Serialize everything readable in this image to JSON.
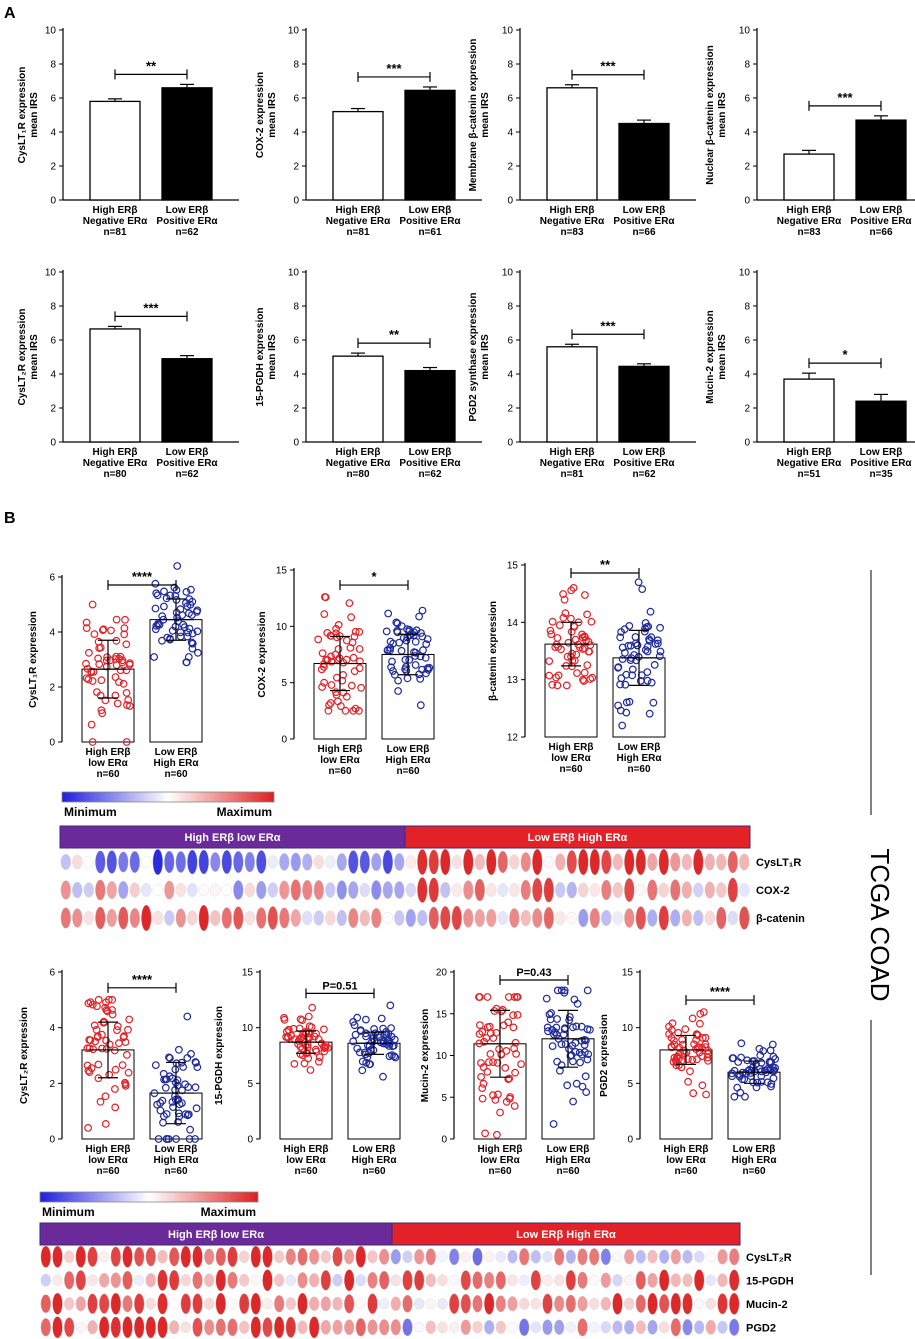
{
  "panel_labels": {
    "a": "A",
    "b": "B"
  },
  "side_label": "TCGA COAD",
  "legend": {
    "min": "Minimum",
    "max": "Maximum"
  },
  "heatmap_top": {
    "group_left": "High ERβ low ERα",
    "group_right": "Low ERβ High ERα",
    "rows": [
      "CysLT₁R",
      "COX-2",
      "β-catenin"
    ]
  },
  "heatmap_bottom": {
    "group_left": "High ERβ low ERα",
    "group_right": "Low ERβ High ERα",
    "rows": [
      "CysLT₂R",
      "15-PGDH",
      "Mucin-2",
      "PGD2"
    ]
  },
  "chart_data": [
    {
      "type": "bar",
      "panel": "A",
      "title": "",
      "ylabel": [
        "CysLT₁R expression",
        "mean IRS"
      ],
      "ylim": [
        0,
        10
      ],
      "yticks": [
        0,
        2,
        4,
        6,
        8,
        10
      ],
      "categories": [
        [
          "High ERβ",
          "Negative ERα",
          "n=81"
        ],
        [
          "Low ERβ",
          "Positive ERα",
          "n=62"
        ]
      ],
      "values": [
        5.8,
        6.6
      ],
      "errors": [
        0.15,
        0.2
      ],
      "significance": "**"
    },
    {
      "type": "bar",
      "panel": "A",
      "title": "",
      "ylabel": [
        "COX-2 expression",
        "mean IRS"
      ],
      "ylim": [
        0,
        10
      ],
      "yticks": [
        0,
        2,
        4,
        6,
        8,
        10
      ],
      "categories": [
        [
          "High ERβ",
          "Negative ERα",
          "n=81"
        ],
        [
          "Low ERβ",
          "Positive ERα",
          "n=61"
        ]
      ],
      "values": [
        5.2,
        6.45
      ],
      "errors": [
        0.18,
        0.2
      ],
      "significance": "***"
    },
    {
      "type": "bar",
      "panel": "A",
      "title": "",
      "ylabel": [
        "Membrane β-catenin expression",
        "mean IRS"
      ],
      "ylim": [
        0,
        10
      ],
      "yticks": [
        0,
        2,
        4,
        6,
        8,
        10
      ],
      "categories": [
        [
          "High ERβ",
          "Negative ERα",
          "n=83"
        ],
        [
          "Low ERβ",
          "Positive ERα",
          "n=66"
        ]
      ],
      "values": [
        6.6,
        4.5
      ],
      "errors": [
        0.18,
        0.2
      ],
      "significance": "***"
    },
    {
      "type": "bar",
      "panel": "A",
      "title": "",
      "ylabel": [
        "Nuclear β-catenin expression",
        "mean IRS"
      ],
      "ylim": [
        0,
        10
      ],
      "yticks": [
        0,
        2,
        4,
        6,
        8,
        10
      ],
      "categories": [
        [
          "High ERβ",
          "Negative ERα",
          "n=83"
        ],
        [
          "Low ERβ",
          "Positive ERα",
          "n=66"
        ]
      ],
      "values": [
        2.7,
        4.7
      ],
      "errors": [
        0.22,
        0.25
      ],
      "significance": "***"
    },
    {
      "type": "bar",
      "panel": "A",
      "title": "",
      "ylabel": [
        "CysLT₂R expression",
        "mean IRS"
      ],
      "ylim": [
        0,
        10
      ],
      "yticks": [
        0,
        2,
        4,
        6,
        8,
        10
      ],
      "categories": [
        [
          "High ERβ",
          "Negative ERα",
          "n=80"
        ],
        [
          "Low ERβ",
          "Positive ERα",
          "n=62"
        ]
      ],
      "values": [
        6.65,
        4.9
      ],
      "errors": [
        0.15,
        0.18
      ],
      "significance": "***"
    },
    {
      "type": "bar",
      "panel": "A",
      "title": "",
      "ylabel": [
        "15-PGDH expression",
        "mean IRS"
      ],
      "ylim": [
        0,
        10
      ],
      "yticks": [
        0,
        2,
        4,
        6,
        8,
        10
      ],
      "categories": [
        [
          "High ERβ",
          "Negative ERα",
          "n=80"
        ],
        [
          "Low ERβ",
          "Positive ERα",
          "n=62"
        ]
      ],
      "values": [
        5.05,
        4.2
      ],
      "errors": [
        0.18,
        0.18
      ],
      "significance": "**"
    },
    {
      "type": "bar",
      "panel": "A",
      "title": "",
      "ylabel": [
        "PGD2 synthase expression",
        "mean IRS"
      ],
      "ylim": [
        0,
        10
      ],
      "yticks": [
        0,
        2,
        4,
        6,
        8,
        10
      ],
      "categories": [
        [
          "High ERβ",
          "Negative ERα",
          "n=81"
        ],
        [
          "Low ERβ",
          "Positive ERα",
          "n=62"
        ]
      ],
      "values": [
        5.6,
        4.45
      ],
      "errors": [
        0.15,
        0.15
      ],
      "significance": "***"
    },
    {
      "type": "bar",
      "panel": "A",
      "title": "",
      "ylabel": [
        "Mucin-2 expression",
        "mean IRS"
      ],
      "ylim": [
        0,
        10
      ],
      "yticks": [
        0,
        2,
        4,
        6,
        8,
        10
      ],
      "categories": [
        [
          "High ERβ",
          "Negative ERα",
          "n=51"
        ],
        [
          "Low ERβ",
          "Positive ERα",
          "n=35"
        ]
      ],
      "values": [
        3.7,
        2.4
      ],
      "errors": [
        0.35,
        0.4
      ],
      "significance": "*"
    },
    {
      "type": "scatter",
      "panel": "B",
      "title": "",
      "ylabel": [
        "CysLT₁R expression"
      ],
      "ylim": [
        0,
        6
      ],
      "yticks": [
        0,
        2,
        4,
        6
      ],
      "categories": [
        [
          "High ERβ",
          "low ERα",
          "n=60"
        ],
        [
          "Low ERβ",
          "High ERα",
          "n=60"
        ]
      ],
      "values": [
        2.65,
        4.45
      ],
      "sd": [
        1.05,
        0.75
      ],
      "range": [
        [
          0.0,
          5.0
        ],
        [
          2.9,
          6.4
        ]
      ],
      "n": [
        60,
        60
      ],
      "significance": "****"
    },
    {
      "type": "scatter",
      "panel": "B",
      "title": "",
      "ylabel": [
        "COX-2 expression"
      ],
      "ylim": [
        0,
        15
      ],
      "yticks": [
        0,
        5,
        10,
        15
      ],
      "categories": [
        [
          "High ERβ",
          "low ERα",
          "n=60"
        ],
        [
          "Low ERβ",
          "High ERα",
          "n=60"
        ]
      ],
      "values": [
        6.7,
        7.5
      ],
      "sd": [
        2.4,
        1.8
      ],
      "range": [
        [
          2.5,
          12.6
        ],
        [
          3.0,
          11.4
        ]
      ],
      "n": [
        60,
        60
      ],
      "significance": "*"
    },
    {
      "type": "scatter",
      "panel": "B",
      "title": "",
      "ylabel": [
        "β-catenin expression"
      ],
      "ylim": [
        12,
        15
      ],
      "yticks": [
        12,
        13,
        14,
        15
      ],
      "categories": [
        [
          "High ERβ",
          "low ERα",
          "n=60"
        ],
        [
          "Low ERβ",
          "High ERα",
          "n=60"
        ]
      ],
      "values": [
        13.62,
        13.38
      ],
      "sd": [
        0.38,
        0.48
      ],
      "range": [
        [
          12.9,
          14.6
        ],
        [
          12.2,
          14.7
        ]
      ],
      "n": [
        60,
        60
      ],
      "significance": "**"
    },
    {
      "type": "scatter",
      "panel": "B",
      "title": "",
      "ylabel": [
        "CysLT₂R expression"
      ],
      "ylim": [
        0,
        6
      ],
      "yticks": [
        0,
        2,
        4,
        6
      ],
      "categories": [
        [
          "High ERβ",
          "low ERα",
          "n=60"
        ],
        [
          "Low ERβ",
          "High ERα",
          "n=60"
        ]
      ],
      "values": [
        3.2,
        1.65
      ],
      "sd": [
        1.0,
        1.1
      ],
      "range": [
        [
          0.4,
          5.0
        ],
        [
          0.0,
          4.4
        ]
      ],
      "n": [
        60,
        60
      ],
      "significance": "****"
    },
    {
      "type": "scatter",
      "panel": "B",
      "title": "",
      "ylabel": [
        "15-PGDH expression"
      ],
      "ylim": [
        0,
        15
      ],
      "yticks": [
        0,
        5,
        10,
        15
      ],
      "categories": [
        [
          "High ERβ",
          "low ERα",
          "n=60"
        ],
        [
          "Low ERβ",
          "High ERα",
          "n=60"
        ]
      ],
      "values": [
        8.7,
        8.6
      ],
      "sd": [
        1.0,
        1.0
      ],
      "range": [
        [
          6.2,
          11.8
        ],
        [
          5.6,
          12.0
        ]
      ],
      "n": [
        60,
        60
      ],
      "significance": "P=0.51"
    },
    {
      "type": "scatter",
      "panel": "B",
      "title": "",
      "ylabel": [
        "Mucin-2 expression"
      ],
      "ylim": [
        0,
        20
      ],
      "yticks": [
        0,
        5,
        10,
        15,
        20
      ],
      "categories": [
        [
          "High ERβ",
          "low ERα",
          "n=60"
        ],
        [
          "Low ERβ",
          "High ERα",
          "n=60"
        ]
      ],
      "values": [
        11.4,
        12.0
      ],
      "sd": [
        4.0,
        3.4
      ],
      "range": [
        [
          0.5,
          17.0
        ],
        [
          1.8,
          17.8
        ]
      ],
      "n": [
        60,
        60
      ],
      "significance": "P=0.43"
    },
    {
      "type": "scatter",
      "panel": "B",
      "title": "",
      "ylabel": [
        "PGD2 expression"
      ],
      "ylim": [
        0,
        15
      ],
      "yticks": [
        0,
        5,
        10,
        15
      ],
      "categories": [
        [
          "High ERβ",
          "low ERα",
          "n=60"
        ],
        [
          "Low ERβ",
          "High ERα",
          "n=60"
        ]
      ],
      "values": [
        8.0,
        6.0
      ],
      "sd": [
        1.3,
        1.0
      ],
      "range": [
        [
          4.0,
          11.4
        ],
        [
          3.8,
          8.6
        ]
      ],
      "n": [
        60,
        60
      ],
      "significance": "****"
    }
  ]
}
